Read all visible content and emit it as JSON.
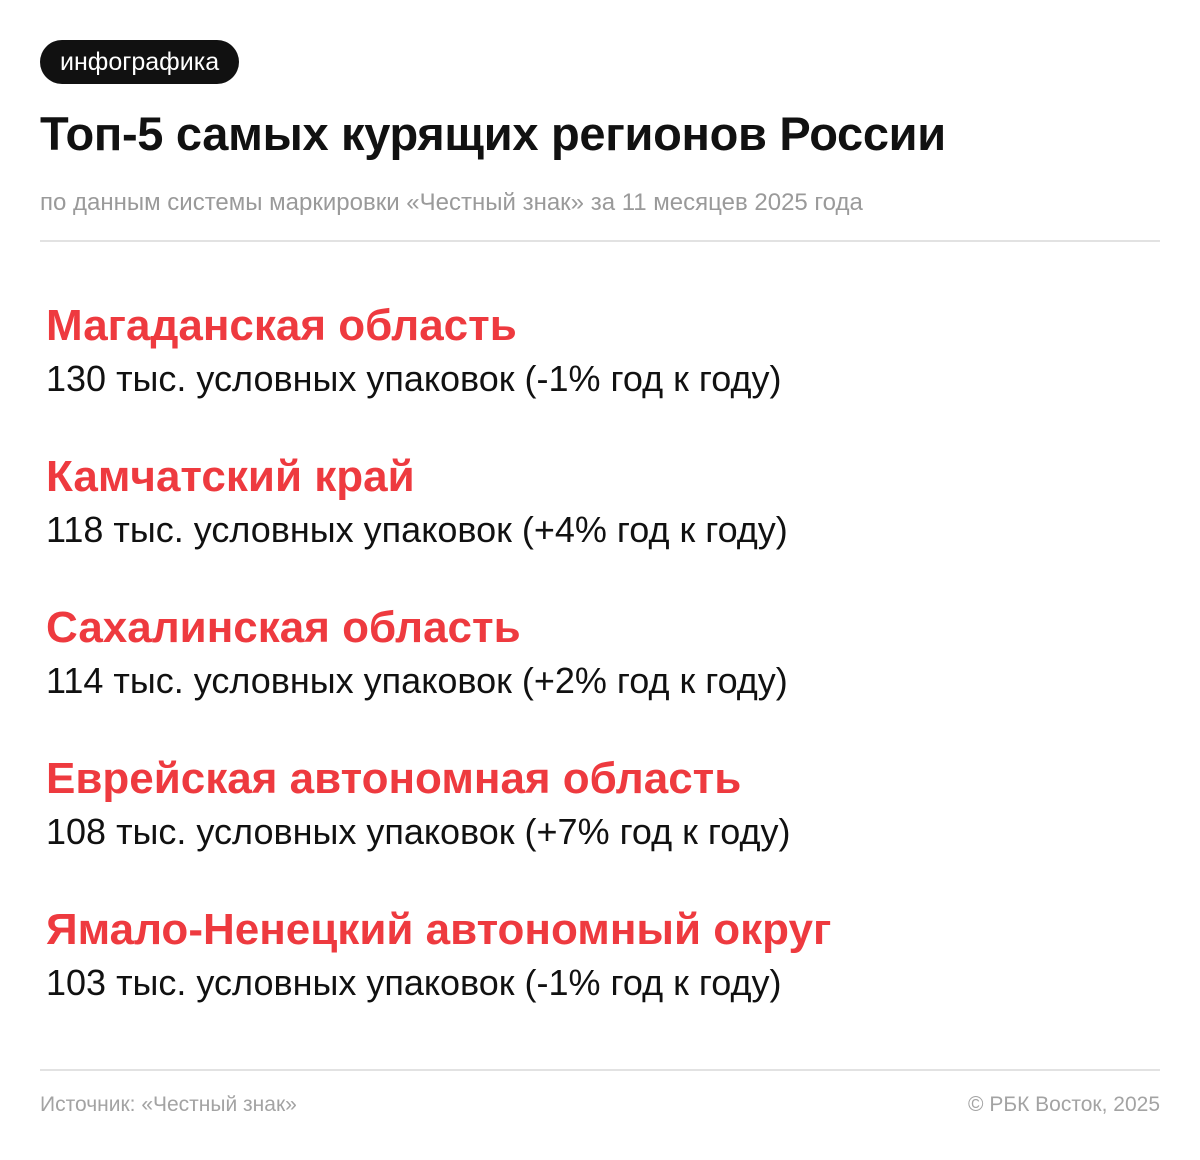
{
  "tag": "инфографика",
  "title": "Топ-5 самых курящих регионов России",
  "subtitle": "по данным системы маркировки «Честный знак» за 11 месяцев 2025 года",
  "colors": {
    "accent": "#ee3a3f",
    "text": "#111111",
    "muted": "#9a9a9a",
    "divider": "#e2e2e2",
    "tag_background": "#111111"
  },
  "regions": [
    {
      "name": "Магаданская область",
      "value": "130 тыс. условных упаковок (-1% год к году)"
    },
    {
      "name": "Камчатский край",
      "value": "118 тыс. условных упаковок (+4% год к году)"
    },
    {
      "name": "Сахалинская область",
      "value": "114 тыс. условных упаковок (+2% год к году)"
    },
    {
      "name": "Еврейская автономная область",
      "value": "108 тыс. условных упаковок (+7% год к году)"
    },
    {
      "name": "Ямало-Ненецкий автономный округ",
      "value": "103 тыс. условных упаковок (-1% год к году)"
    }
  ],
  "footer": {
    "source": "Источник: «Честный знак»",
    "copyright": "© РБК Восток, 2025"
  }
}
